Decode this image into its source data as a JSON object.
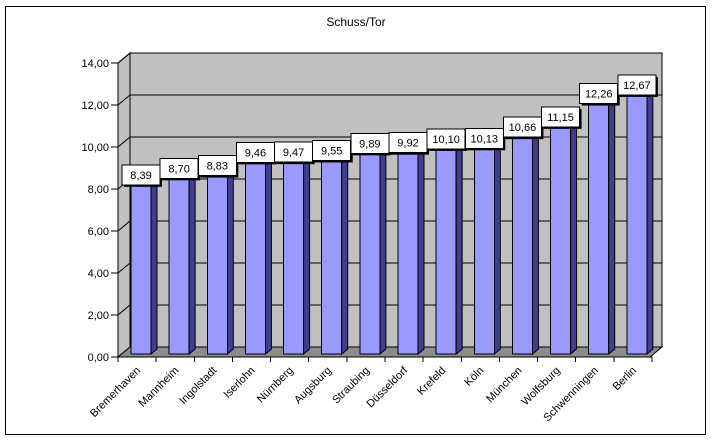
{
  "window": {
    "background": "#FFFFFF"
  },
  "chart_data": {
    "type": "bar",
    "title": "Schuss/Tor",
    "xlabel": "",
    "ylabel": "",
    "legend": "none",
    "grid": true,
    "style_3d": true,
    "categories": [
      "Bremerhaven",
      "Mannheim",
      "Ingolstadt",
      "Iserlohn",
      "Nürnberg",
      "Augsburg",
      "Straubing",
      "Düsseldorf",
      "Krefeld",
      "Köln",
      "München",
      "Wolfsburg",
      "Schwenningen",
      "Berlin"
    ],
    "values": [
      8.39,
      8.7,
      8.83,
      9.46,
      9.47,
      9.55,
      9.89,
      9.92,
      10.1,
      10.13,
      10.66,
      11.15,
      12.26,
      12.67
    ],
    "value_labels": [
      "8,39",
      "8,70",
      "8,83",
      "9,46",
      "9,47",
      "9,55",
      "9,89",
      "9,92",
      "10,10",
      "10,13",
      "10,66",
      "11,15",
      "12,26",
      "12,67"
    ],
    "y_axis": {
      "min": 0,
      "max": 14,
      "step": 2,
      "tick_values": [
        0,
        2,
        4,
        6,
        8,
        10,
        12,
        14
      ],
      "tick_labels": [
        "0,00",
        "2,00",
        "4,00",
        "6,00",
        "8,00",
        "10,00",
        "12,00",
        "14,00"
      ]
    },
    "colors": {
      "bar_face": "#9999FF",
      "bar_side": "#3F3F8E",
      "bar_top": "#8585DD",
      "wall": "#C0C0C0",
      "floor": "#8C8C8C",
      "grid_line": "#000000",
      "axis_line": "#000000",
      "label_box_bg": "#FFFFFF",
      "label_box_border": "#000000",
      "label_box_shadow": "#000000",
      "text": "#000000"
    }
  }
}
